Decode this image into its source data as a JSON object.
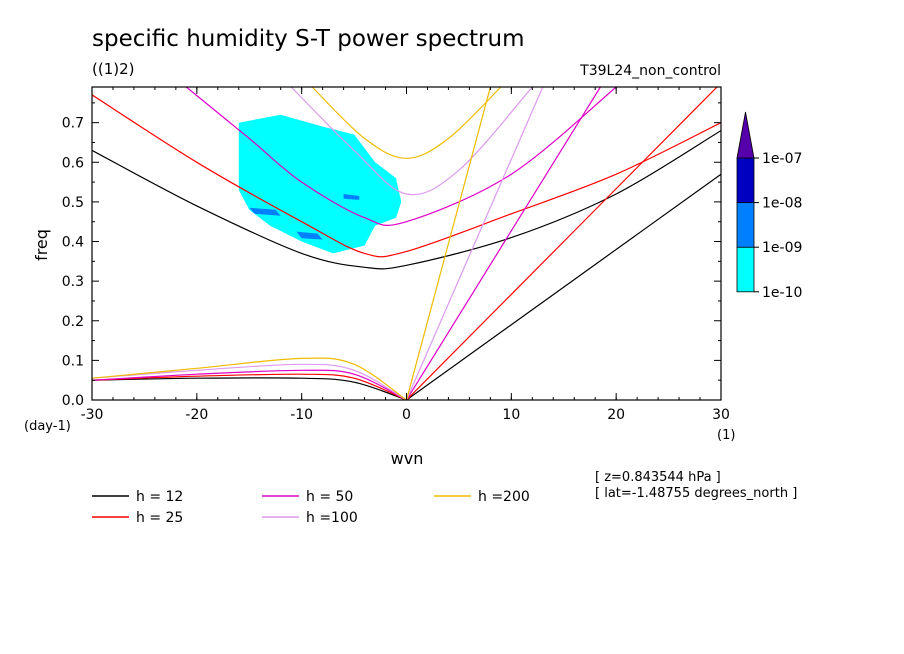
{
  "chart_data": {
    "type": "line",
    "title": "specific humidity S-T power spectrum",
    "subtitle": "((1)2)",
    "run_label": "T39L24_non_control",
    "xlabel": "wvn",
    "x_unit": "(1)",
    "ylabel": "freq",
    "y_unit": "(day-1)",
    "xlim": [
      -30,
      30
    ],
    "ylim": [
      0,
      0.79
    ],
    "x_ticks": [
      -30,
      -20,
      -10,
      0,
      10,
      20,
      30
    ],
    "x_tick_labels": [
      "-30",
      "-20",
      "-10",
      "0",
      "10",
      "20",
      "30"
    ],
    "y_ticks": [
      0.0,
      0.1,
      0.2,
      0.3,
      0.4,
      0.5,
      0.6,
      0.7
    ],
    "y_tick_labels": [
      "0.0",
      "0.1",
      "0.2",
      "0.3",
      "0.4",
      "0.5",
      "0.6",
      "0.7"
    ],
    "series": [
      {
        "name": "h = 12",
        "color": "#000000",
        "legend_label": "h = 12",
        "ig": {
          "x": [
            -30,
            -20,
            -10,
            -4,
            0,
            10,
            20,
            30
          ],
          "y": [
            0.63,
            0.49,
            0.37,
            0.335,
            0.34,
            0.41,
            0.52,
            0.68
          ]
        },
        "kelvin": {
          "x": [
            0,
            30
          ],
          "y": [
            0,
            0.57
          ]
        },
        "rossby": {
          "x": [
            -30,
            -20,
            -10,
            -5,
            0
          ],
          "y": [
            0.05,
            0.055,
            0.055,
            0.045,
            0
          ]
        }
      },
      {
        "name": "h = 25",
        "color": "#ff0000",
        "legend_label": "h = 25",
        "ig": {
          "x": [
            -30,
            -20,
            -10,
            -4,
            0,
            10,
            20,
            30
          ],
          "y": [
            0.77,
            0.6,
            0.45,
            0.37,
            0.375,
            0.47,
            0.57,
            0.7
          ]
        },
        "kelvin": {
          "x": [
            0,
            30
          ],
          "y": [
            0,
            0.8
          ]
        },
        "rossby": {
          "x": [
            -30,
            -20,
            -10,
            -5,
            0
          ],
          "y": [
            0.05,
            0.06,
            0.065,
            0.055,
            0
          ]
        }
      },
      {
        "name": "h = 50",
        "color": "#e000c8",
        "legend_label": "h = 50",
        "ig": {
          "x": [
            -21,
            -15,
            -10,
            -4,
            0,
            10,
            20
          ],
          "y": [
            0.79,
            0.66,
            0.55,
            0.46,
            0.45,
            0.57,
            0.79
          ]
        },
        "kelvin": {
          "x": [
            0,
            18.5
          ],
          "y": [
            0,
            0.79
          ]
        },
        "rossby": {
          "x": [
            -30,
            -20,
            -10,
            -5,
            0
          ],
          "y": [
            0.05,
            0.065,
            0.075,
            0.065,
            0
          ]
        }
      },
      {
        "name": "h =100",
        "color": "#dd99ee",
        "legend_label": "h =100",
        "ig": {
          "x": [
            -11,
            -5,
            0,
            5,
            12
          ],
          "y": [
            0.79,
            0.63,
            0.52,
            0.58,
            0.79
          ]
        },
        "kelvin": {
          "x": [
            0,
            13
          ],
          "y": [
            0,
            0.79
          ]
        },
        "rossby": {
          "x": [
            -30,
            -20,
            -10,
            -5,
            0
          ],
          "y": [
            0.055,
            0.075,
            0.09,
            0.075,
            0
          ]
        }
      },
      {
        "name": "h =200",
        "color": "#eebb00",
        "legend_label": "h =200",
        "ig": {
          "x": [
            -9,
            -4,
            0,
            4,
            9
          ],
          "y": [
            0.79,
            0.66,
            0.61,
            0.66,
            0.79
          ]
        },
        "kelvin": {
          "x": [
            0,
            8
          ],
          "y": [
            0,
            0.79
          ]
        },
        "rossby": {
          "x": [
            -30,
            -20,
            -10,
            -5,
            0
          ],
          "y": [
            0.055,
            0.08,
            0.105,
            0.09,
            0
          ]
        }
      }
    ],
    "contour_levels": [
      "1e-10",
      "1e-09",
      "1e-08",
      "1e-07"
    ],
    "contour_colors": [
      "#00ffff",
      "#0080ff",
      "#0000c0",
      "#5500aa"
    ],
    "shaded_regions": [
      {
        "level": "1e-10",
        "points": [
          [
            -16,
            0.7
          ],
          [
            -12,
            0.72
          ],
          [
            -8,
            0.69
          ],
          [
            -5,
            0.67
          ],
          [
            -3,
            0.6
          ],
          [
            -1,
            0.56
          ],
          [
            -0.5,
            0.5
          ],
          [
            -1,
            0.46
          ],
          [
            -3,
            0.44
          ],
          [
            -4,
            0.39
          ],
          [
            -7,
            0.37
          ],
          [
            -10,
            0.4
          ],
          [
            -13,
            0.44
          ],
          [
            -15,
            0.48
          ],
          [
            -16,
            0.53
          ],
          [
            -16,
            0.62
          ]
        ]
      },
      {
        "level": "1e-09",
        "points": [
          [
            -15,
            0.485
          ],
          [
            -12.5,
            0.48
          ],
          [
            -12,
            0.465
          ],
          [
            -14.5,
            0.47
          ]
        ]
      },
      {
        "level": "1e-09",
        "points": [
          [
            -10.5,
            0.425
          ],
          [
            -8.5,
            0.42
          ],
          [
            -8,
            0.405
          ],
          [
            -10,
            0.408
          ]
        ]
      },
      {
        "level": "1e-09",
        "points": [
          [
            -6,
            0.52
          ],
          [
            -4.5,
            0.515
          ],
          [
            -4.5,
            0.505
          ],
          [
            -6,
            0.508
          ]
        ]
      }
    ],
    "annotations": [
      "[ z=0.843544 hPa ]",
      "[ lat=-1.48755 degrees_north ]"
    ]
  }
}
